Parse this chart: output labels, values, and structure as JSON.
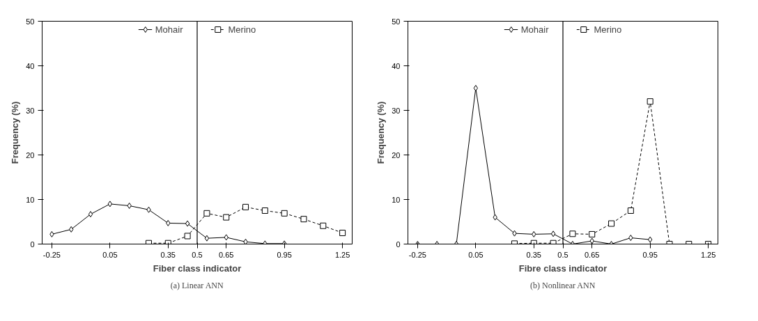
{
  "chart_data": [
    {
      "type": "line",
      "xlabel": "Fiber class indicator",
      "ylabel": "Frequency (%)",
      "xlim": [
        -0.3,
        1.3
      ],
      "ylim": [
        0,
        50
      ],
      "xticks": [
        -0.25,
        0.05,
        0.35,
        0.5,
        0.65,
        0.95,
        1.25
      ],
      "yticks": [
        0,
        10,
        20,
        30,
        40,
        50
      ],
      "grid": false,
      "legend": "top",
      "annotations": [
        "(a) Linear ANN"
      ],
      "ref_lines": [
        {
          "axis": "x",
          "value": 0.5,
          "color": "#000000"
        }
      ],
      "series": [
        {
          "name": "Mohair",
          "color": "#000000",
          "marker": "diamond",
          "line_style": "solid",
          "x": [
            -0.25,
            -0.15,
            -0.05,
            0.05,
            0.15,
            0.25,
            0.35,
            0.45,
            0.55,
            0.65,
            0.75,
            0.85,
            0.95
          ],
          "values": [
            2.2,
            3.3,
            6.7,
            9,
            8.6,
            7.7,
            4.7,
            4.6,
            1.3,
            1.5,
            0.5,
            0.1,
            0.1
          ]
        },
        {
          "name": "Merino",
          "color": "#000000",
          "marker": "square",
          "line_style": "dashed",
          "x": [
            0.25,
            0.35,
            0.45,
            0.55,
            0.65,
            0.75,
            0.85,
            0.95,
            1.05,
            1.15,
            1.25
          ],
          "values": [
            0.2,
            0.2,
            1.8,
            6.9,
            6.0,
            8.3,
            7.5,
            6.9,
            5.6,
            4.1,
            2.5
          ]
        }
      ]
    },
    {
      "type": "line",
      "xlabel": "Fibre class indicator",
      "ylabel": "Frequency (%)",
      "xlim": [
        -0.3,
        1.3
      ],
      "ylim": [
        0,
        50
      ],
      "xticks": [
        -0.25,
        0.05,
        0.35,
        0.5,
        0.65,
        0.95,
        1.25
      ],
      "yticks": [
        0,
        10,
        20,
        30,
        40,
        50
      ],
      "grid": false,
      "legend": "top",
      "annotations": [
        "(b) Nonlinear ANN"
      ],
      "ref_lines": [
        {
          "axis": "x",
          "value": 0.5,
          "color": "#000000"
        }
      ],
      "series": [
        {
          "name": "Mohair",
          "color": "#000000",
          "marker": "diamond",
          "line_style": "solid",
          "x": [
            -0.25,
            -0.15,
            -0.05,
            0.05,
            0.15,
            0.25,
            0.35,
            0.45,
            0.55,
            0.65,
            0.75,
            0.85,
            0.95
          ],
          "values": [
            0,
            0,
            0,
            35,
            6,
            2.4,
            2.2,
            2.3,
            0,
            0.7,
            0,
            1.4,
            1.0
          ]
        },
        {
          "name": "Merino",
          "color": "#000000",
          "marker": "square",
          "line_style": "dashed",
          "x": [
            0.25,
            0.35,
            0.45,
            0.55,
            0.65,
            0.75,
            0.85,
            0.95,
            1.05,
            1.15,
            1.25
          ],
          "values": [
            0.1,
            0.2,
            0.2,
            2.3,
            2.2,
            4.6,
            7.5,
            32,
            0,
            0,
            0
          ]
        }
      ]
    }
  ]
}
